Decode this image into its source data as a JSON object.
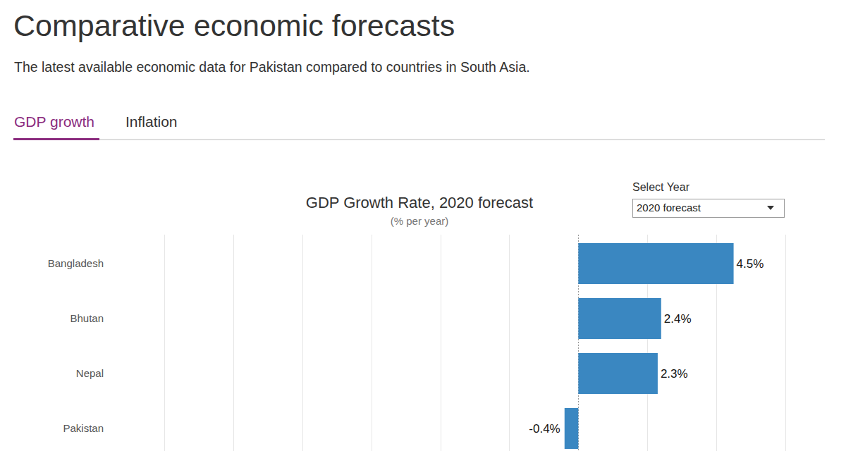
{
  "header": {
    "title": "Comparative economic forecasts",
    "subtitle": "The latest available economic data for Pakistan compared to countries in South Asia."
  },
  "tabs": [
    "GDP growth",
    "Inflation"
  ],
  "controls": {
    "label": "Select Year",
    "selected": "2020 forecast"
  },
  "chart_data": {
    "type": "bar",
    "orientation": "horizontal",
    "title": "GDP Growth Rate, 2020 forecast",
    "subtitle": "(% per year)",
    "categories": [
      "Bangladesh",
      "Bhutan",
      "Nepal",
      "Pakistan"
    ],
    "values": [
      4.5,
      2.4,
      2.3,
      -0.4
    ],
    "value_labels": [
      "4.5%",
      "2.4%",
      "2.3%",
      "-0.4%"
    ],
    "data_labels": true,
    "color": "#3a87c1",
    "xlim": [
      -12,
      6
    ],
    "xticks": [
      -12,
      -10,
      -8,
      -6,
      -4,
      -2,
      0,
      2,
      4,
      6
    ],
    "grid": true,
    "tick_labels": false
  }
}
